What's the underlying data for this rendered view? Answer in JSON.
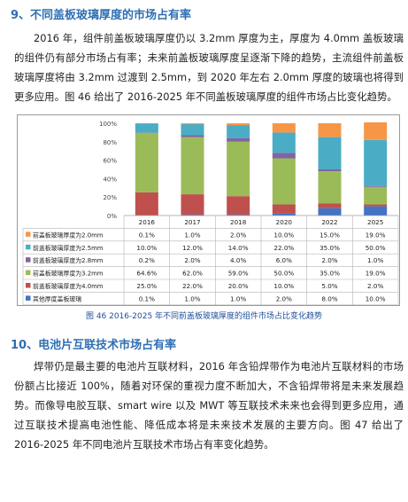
{
  "section9": {
    "heading": "9、不同盖板玻璃厚度的市场占有率",
    "paragraph": "2016 年，组件前盖板玻璃厚度仍以 3.2mm 厚度为主，厚度为 4.0mm 盖板玻璃的组件仍有部分市场占有率；未来前盖板玻璃厚度呈逐渐下降的趋势，主流组件前盖板玻璃厚度将由 3.2mm 过渡到 2.5mm，到 2020 年左右 2.0mm 厚度的玻璃也将得到更多应用。图 46 给出了 2016-2025 年不同盖板玻璃厚度的组件市场占比变化趋势。"
  },
  "figure46": {
    "caption": "图 46 2016-2025 年不同前盖板玻璃厚度的组件市场占比变化趋势"
  },
  "chart_data": {
    "type": "bar",
    "stacked": true,
    "categories": [
      "2016",
      "2017",
      "2018",
      "2020",
      "2022",
      "2025"
    ],
    "y_ticks": [
      "0%",
      "20%",
      "40%",
      "60%",
      "80%",
      "100%"
    ],
    "ylim": [
      0,
      100
    ],
    "legend_placement": "table-left",
    "series": [
      {
        "name": "其他厚度盖板玻璃",
        "color": "#4472c4",
        "values": [
          0.1,
          1.0,
          1.0,
          2.0,
          8.0,
          10.0
        ],
        "labels": [
          "0.1%",
          "1.0%",
          "1.0%",
          "2.0%",
          "8.0%",
          "10.0%"
        ]
      },
      {
        "name": "前盖板玻璃厚度为4.0mm",
        "color": "#c0504d",
        "values": [
          25.0,
          22.0,
          20.0,
          10.0,
          5.0,
          2.0
        ],
        "labels": [
          "25.0%",
          "22.0%",
          "20.0%",
          "10.0%",
          "5.0%",
          "2.0%"
        ]
      },
      {
        "name": "前盖板玻璃厚度为3.2mm",
        "color": "#9bbb59",
        "values": [
          64.6,
          62.0,
          59.0,
          50.0,
          35.0,
          19.0
        ],
        "labels": [
          "64.6%",
          "62.0%",
          "59.0%",
          "50.0%",
          "35.0%",
          "19.0%"
        ]
      },
      {
        "name": "前盖板玻璃厚度为2.8mm",
        "color": "#8064a2",
        "values": [
          0.2,
          2.0,
          4.0,
          6.0,
          2.0,
          1.0
        ],
        "labels": [
          "0.2%",
          "2.0%",
          "4.0%",
          "6.0%",
          "2.0%",
          "1.0%"
        ]
      },
      {
        "name": "前盖板玻璃厚度为2.5mm",
        "color": "#4bacc6",
        "values": [
          10.0,
          12.0,
          14.0,
          22.0,
          35.0,
          50.0
        ],
        "labels": [
          "10.0%",
          "12.0%",
          "14.0%",
          "22.0%",
          "35.0%",
          "50.0%"
        ]
      },
      {
        "name": "前盖板玻璃厚度为2.0mm",
        "color": "#f79646",
        "values": [
          0.1,
          1.0,
          2.0,
          10.0,
          15.0,
          19.0
        ],
        "labels": [
          "0.1%",
          "1.0%",
          "2.0%",
          "10.0%",
          "15.0%",
          "19.0%"
        ]
      }
    ],
    "table_row_order": [
      "前盖板玻璃厚度为2.0mm",
      "前盖板玻璃厚度为2.5mm",
      "前盖板玻璃厚度为2.8mm",
      "前盖板玻璃厚度为3.2mm",
      "前盖板玻璃厚度为4.0mm",
      "其他厚度盖板玻璃"
    ]
  },
  "section10": {
    "heading": "10、电池片互联技术市场占有率",
    "paragraph": "焊带仍是最主要的电池片互联材料，2016 年含铅焊带作为电池片互联材料的市场份额占比接近 100%，随着对环保的重视力度不断加大，不含铅焊带将是未来发展趋势。而像导电胶互联、smart wire 以及 MWT 等互联技术未来也会得到更多应用，通过互联技术提高电池性能、降低成本将是未来技术发展的主要方向。图 47 给出了 2016-2025 年不同电池片互联技术市场占有率变化趋势。"
  }
}
